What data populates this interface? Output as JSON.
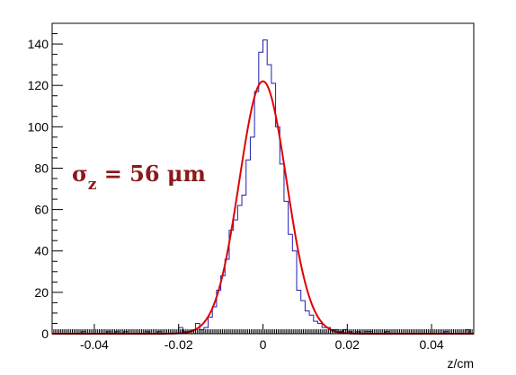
{
  "chart_data": {
    "type": "histogram",
    "xlabel": "z/cm",
    "ylabel": "",
    "xlim": [
      -0.05,
      0.05
    ],
    "ylim": [
      0,
      150
    ],
    "x_ticks": [
      -0.04,
      -0.02,
      0,
      0.02,
      0.04
    ],
    "x_tick_labels": [
      "-0.04",
      "-0.02",
      "0",
      "0.02",
      "0.04"
    ],
    "y_ticks": [
      0,
      20,
      40,
      60,
      80,
      100,
      120,
      140
    ],
    "y_tick_labels": [
      "0",
      "20",
      "40",
      "60",
      "80",
      "100",
      "120",
      "140"
    ],
    "grid": false,
    "histogram": {
      "bin_width": 0.001,
      "bin_edges_range": [
        -0.05,
        0.05
      ],
      "counts": [
        0,
        0,
        0,
        0,
        0,
        0,
        0,
        1,
        0,
        0,
        0,
        0,
        0,
        1,
        0,
        1,
        0,
        1,
        0,
        0,
        0,
        0,
        1,
        0,
        0,
        1,
        0,
        0,
        0,
        0,
        3,
        1,
        0,
        0,
        5,
        2,
        3,
        8,
        13,
        21,
        28,
        36,
        50,
        55,
        62,
        67,
        84,
        95,
        117,
        136,
        142,
        130,
        121,
        100,
        82,
        64,
        48,
        40,
        21,
        16,
        11,
        9,
        6,
        5,
        3,
        3,
        2,
        2,
        1,
        2,
        1,
        0,
        1,
        0,
        1,
        1,
        0,
        0,
        0,
        1,
        0,
        0,
        0,
        0,
        0,
        0,
        0,
        0,
        0,
        0,
        0,
        0,
        0,
        1,
        0,
        0,
        0,
        0,
        2,
        0
      ],
      "color": "#1f1fb0"
    },
    "fit": {
      "function": "gaussian",
      "amplitude": 122,
      "mean": 0.0,
      "sigma": 0.0056,
      "color": "#e00000"
    },
    "annotation": {
      "symbol": "σ",
      "subscript": "z",
      "text": " = 56 μm",
      "color": "#8b1a1a"
    }
  }
}
